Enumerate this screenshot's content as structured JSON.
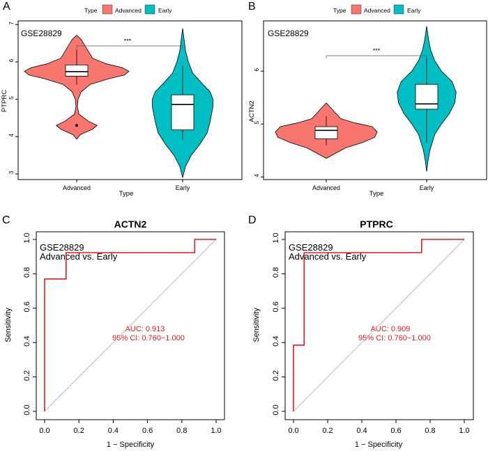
{
  "colors": {
    "advanced": "#F8766D",
    "early": "#00BFC4",
    "roc_line": "#E41A1C",
    "diag": "#BBBBBB",
    "axis": "#000000"
  },
  "chart_data": [
    {
      "panel": "A",
      "type": "violin",
      "gene": "PTPRC",
      "dataset_label": "GSE28829",
      "xlabel": "Type",
      "ylabel": "PTPRC",
      "legend": {
        "title": "Type",
        "items": [
          "Advanced",
          "Early"
        ]
      },
      "categories": [
        "Advanced",
        "Early"
      ],
      "ylim": [
        2.85,
        7.1
      ],
      "yticks": [
        3,
        4,
        5,
        6,
        7
      ],
      "significance": "***",
      "groups": [
        {
          "name": "Advanced",
          "min": 3.93,
          "max": 6.72,
          "q1": 5.62,
          "median": 5.74,
          "q3": 5.92,
          "whisker_low": 5.39,
          "whisker_high": 6.33,
          "outliers": [
            4.3
          ],
          "density": [
            [
              3.93,
              0.0
            ],
            [
              4.05,
              0.15
            ],
            [
              4.2,
              0.7
            ],
            [
              4.3,
              0.9
            ],
            [
              4.42,
              0.5
            ],
            [
              4.6,
              0.1
            ],
            [
              4.8,
              0.03
            ],
            [
              5.0,
              0.06
            ],
            [
              5.2,
              0.2
            ],
            [
              5.4,
              0.6
            ],
            [
              5.55,
              1.4
            ],
            [
              5.65,
              2.1
            ],
            [
              5.75,
              2.3
            ],
            [
              5.85,
              2.0
            ],
            [
              5.95,
              1.3
            ],
            [
              6.1,
              0.7
            ],
            [
              6.3,
              0.5
            ],
            [
              6.5,
              0.3
            ],
            [
              6.6,
              0.2
            ],
            [
              6.72,
              0.0
            ]
          ]
        },
        {
          "name": "Early",
          "min": 2.9,
          "max": 6.9,
          "q1": 4.18,
          "median": 4.86,
          "q3": 5.12,
          "whisker_low": 3.92,
          "whisker_high": 5.9,
          "outliers": [],
          "density": [
            [
              2.9,
              0.0
            ],
            [
              3.2,
              0.1
            ],
            [
              3.5,
              0.3
            ],
            [
              3.8,
              0.6
            ],
            [
              4.1,
              0.85
            ],
            [
              4.4,
              0.95
            ],
            [
              4.6,
              1.0
            ],
            [
              4.8,
              1.05
            ],
            [
              5.0,
              1.05
            ],
            [
              5.2,
              0.95
            ],
            [
              5.4,
              0.7
            ],
            [
              5.7,
              0.35
            ],
            [
              6.0,
              0.2
            ],
            [
              6.3,
              0.1
            ],
            [
              6.6,
              0.05
            ],
            [
              6.9,
              0.0
            ]
          ]
        }
      ]
    },
    {
      "panel": "B",
      "type": "violin",
      "gene": "ACTN2",
      "dataset_label": "GSE28829",
      "xlabel": "Type",
      "ylabel": "ACTN2",
      "legend": {
        "title": "Type",
        "items": [
          "Advanced",
          "Early"
        ]
      },
      "categories": [
        "Advanced",
        "Early"
      ],
      "ylim": [
        3.95,
        6.95
      ],
      "yticks": [
        4,
        5,
        6
      ],
      "significance": "***",
      "groups": [
        {
          "name": "Advanced",
          "min": 4.35,
          "max": 5.4,
          "q1": 4.72,
          "median": 4.88,
          "q3": 4.95,
          "whisker_low": 4.6,
          "whisker_high": 5.15,
          "outliers": [],
          "density": [
            [
              4.35,
              0.0
            ],
            [
              4.45,
              0.2
            ],
            [
              4.55,
              0.4
            ],
            [
              4.65,
              0.75
            ],
            [
              4.75,
              1.0
            ],
            [
              4.85,
              1.05
            ],
            [
              4.95,
              0.95
            ],
            [
              5.02,
              0.6
            ],
            [
              5.1,
              0.3
            ],
            [
              5.2,
              0.2
            ],
            [
              5.3,
              0.1
            ],
            [
              5.4,
              0.0
            ]
          ]
        },
        {
          "name": "Early",
          "min": 4.1,
          "max": 6.85,
          "q1": 5.28,
          "median": 5.38,
          "q3": 5.75,
          "whisker_low": 4.65,
          "whisker_high": 6.28,
          "outliers": [],
          "density": [
            [
              4.1,
              0.0
            ],
            [
              4.3,
              0.05
            ],
            [
              4.5,
              0.12
            ],
            [
              4.8,
              0.3
            ],
            [
              5.0,
              0.55
            ],
            [
              5.2,
              0.85
            ],
            [
              5.4,
              1.05
            ],
            [
              5.6,
              1.1
            ],
            [
              5.8,
              0.95
            ],
            [
              6.0,
              0.55
            ],
            [
              6.2,
              0.3
            ],
            [
              6.4,
              0.15
            ],
            [
              6.6,
              0.07
            ],
            [
              6.85,
              0.0
            ]
          ]
        }
      ]
    },
    {
      "panel": "C",
      "type": "roc",
      "title": "ACTN2",
      "label_line1": "GSE28829",
      "label_line2": "Advanced vs. Early",
      "auc_text": "AUC: 0.913",
      "ci_text": "95% CI: 0.760−1.000",
      "xlabel": "1 − Specificity",
      "ylabel": "Sensitivity",
      "xlim": [
        0,
        1
      ],
      "ylim": [
        0,
        1
      ],
      "ticks": [
        "0.0",
        "0.2",
        "0.4",
        "0.6",
        "0.8",
        "1.0"
      ],
      "fpr": [
        0,
        0,
        0.125,
        0.125,
        0.875,
        0.875,
        1
      ],
      "tpr": [
        0,
        0.77,
        0.77,
        0.923,
        0.923,
        1,
        1
      ]
    },
    {
      "panel": "D",
      "type": "roc",
      "title": "PTPRC",
      "label_line1": "GSE28829",
      "label_line2": "Advanced vs. Early",
      "auc_text": "AUC: 0.909",
      "ci_text": "95% CI: 0.760−1.000",
      "xlabel": "1 − Specificity",
      "ylabel": "Sensitivity",
      "xlim": [
        0,
        1
      ],
      "ylim": [
        0,
        1
      ],
      "ticks": [
        "0.0",
        "0.2",
        "0.4",
        "0.6",
        "0.8",
        "1.0"
      ],
      "fpr": [
        0,
        0,
        0.0625,
        0.0625,
        0.75,
        0.75,
        1
      ],
      "tpr": [
        0,
        0.385,
        0.385,
        0.923,
        0.923,
        1,
        1
      ]
    }
  ]
}
